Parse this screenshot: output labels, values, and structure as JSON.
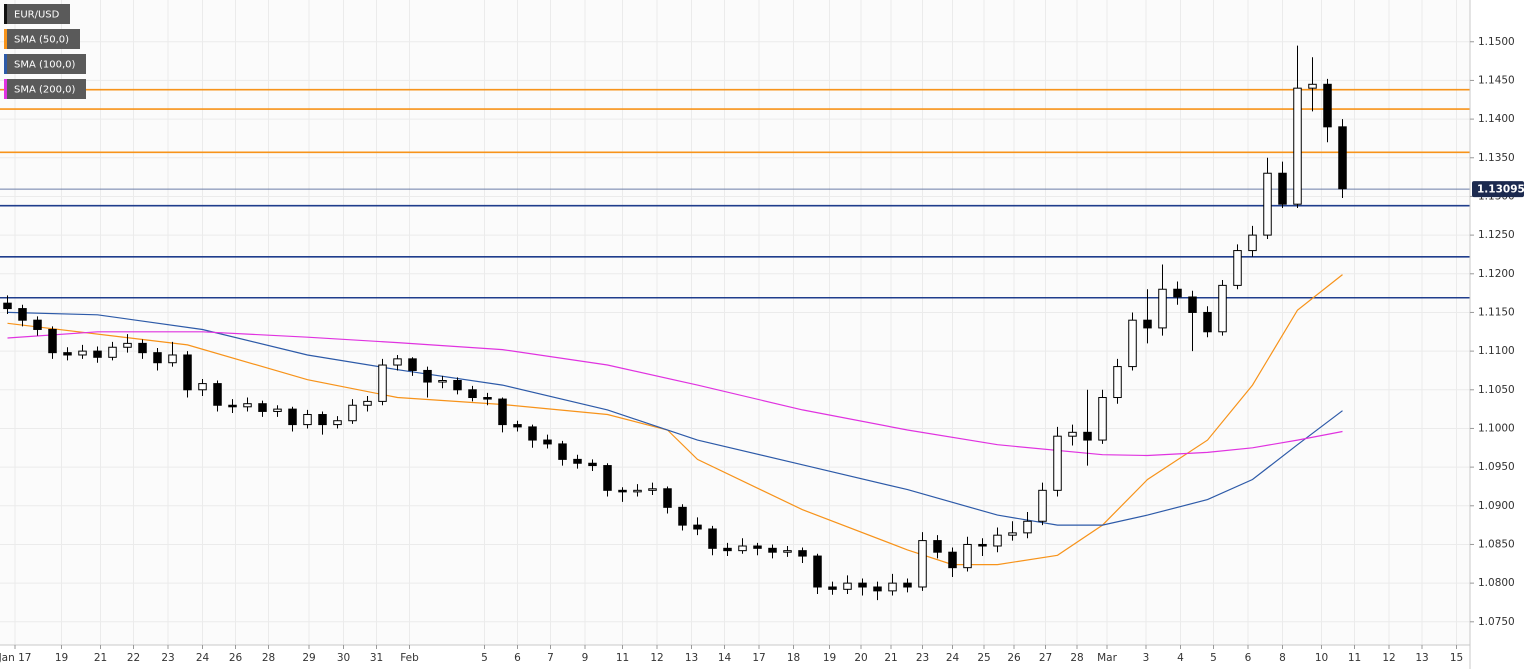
{
  "chart_data": {
    "type": "candlestick",
    "symbol": "EUR/USD",
    "symbol_color": "#111111",
    "up_color": "#ffffff",
    "down_color": "#000000",
    "ohlc": [
      [
        1.1162,
        1.1172,
        1.1148,
        1.1155
      ],
      [
        1.1155,
        1.116,
        1.1132,
        1.114
      ],
      [
        1.114,
        1.1145,
        1.112,
        1.1128
      ],
      [
        1.1128,
        1.1132,
        1.109,
        1.1098
      ],
      [
        1.1098,
        1.1105,
        1.1088,
        1.1095
      ],
      [
        1.1095,
        1.1108,
        1.109,
        1.11
      ],
      [
        1.11,
        1.1106,
        1.1085,
        1.1092
      ],
      [
        1.1092,
        1.1112,
        1.1088,
        1.1105
      ],
      [
        1.1105,
        1.1122,
        1.1098,
        1.111
      ],
      [
        1.111,
        1.1115,
        1.109,
        1.1098
      ],
      [
        1.1098,
        1.1104,
        1.1075,
        1.1085
      ],
      [
        1.1085,
        1.1112,
        1.108,
        1.1095
      ],
      [
        1.1095,
        1.11,
        1.104,
        1.105
      ],
      [
        1.105,
        1.1064,
        1.1042,
        1.1058
      ],
      [
        1.1058,
        1.1062,
        1.1022,
        1.103
      ],
      [
        1.103,
        1.1038,
        1.102,
        1.1028
      ],
      [
        1.1028,
        1.104,
        1.1022,
        1.1032
      ],
      [
        1.1032,
        1.1036,
        1.1015,
        1.1022
      ],
      [
        1.1022,
        1.103,
        1.1015,
        1.1025
      ],
      [
        1.1025,
        1.1028,
        1.0996,
        1.1005
      ],
      [
        1.1005,
        1.1024,
        1.1,
        1.1018
      ],
      [
        1.1018,
        1.1022,
        1.0992,
        1.1005
      ],
      [
        1.1005,
        1.1016,
        1.1,
        1.101
      ],
      [
        1.101,
        1.1038,
        1.1006,
        1.103
      ],
      [
        1.103,
        1.1042,
        1.1022,
        1.1035
      ],
      [
        1.1035,
        1.109,
        1.103,
        1.1082
      ],
      [
        1.1082,
        1.1095,
        1.1075,
        1.109
      ],
      [
        1.109,
        1.1092,
        1.1068,
        1.1075
      ],
      [
        1.1075,
        1.108,
        1.104,
        1.106
      ],
      [
        1.106,
        1.1068,
        1.1052,
        1.1062
      ],
      [
        1.1062,
        1.1066,
        1.1044,
        1.105
      ],
      [
        1.105,
        1.1055,
        1.1035,
        1.104
      ],
      [
        1.104,
        1.1046,
        1.103,
        1.1038
      ],
      [
        1.1038,
        1.104,
        1.0995,
        1.1005
      ],
      [
        1.1005,
        1.101,
        1.0996,
        1.1002
      ],
      [
        1.1002,
        1.1005,
        1.0975,
        1.0985
      ],
      [
        1.0985,
        1.0992,
        1.0974,
        1.098
      ],
      [
        1.098,
        1.0984,
        1.0952,
        1.096
      ],
      [
        1.096,
        1.0966,
        1.0948,
        1.0955
      ],
      [
        1.0955,
        1.096,
        1.0945,
        1.0952
      ],
      [
        1.0952,
        1.0955,
        1.0912,
        1.092
      ],
      [
        1.092,
        1.0924,
        1.0905,
        1.0918
      ],
      [
        1.0918,
        1.0928,
        1.0912,
        1.092
      ],
      [
        1.092,
        1.093,
        1.0914,
        1.0922
      ],
      [
        1.0922,
        1.0925,
        1.089,
        1.0898
      ],
      [
        1.0898,
        1.0902,
        1.0868,
        1.0875
      ],
      [
        1.0875,
        1.0885,
        1.0862,
        1.087
      ],
      [
        1.087,
        1.0874,
        1.0836,
        1.0845
      ],
      [
        1.0845,
        1.0852,
        1.0835,
        1.0842
      ],
      [
        1.0842,
        1.0858,
        1.0838,
        1.0848
      ],
      [
        1.0848,
        1.0852,
        1.0836,
        1.0845
      ],
      [
        1.0845,
        1.085,
        1.0832,
        1.084
      ],
      [
        1.084,
        1.0848,
        1.0834,
        1.0842
      ],
      [
        1.0842,
        1.0846,
        1.0826,
        1.0835
      ],
      [
        1.0835,
        1.0838,
        1.0786,
        1.0795
      ],
      [
        1.0795,
        1.0802,
        1.0785,
        1.0792
      ],
      [
        1.0792,
        1.081,
        1.0786,
        1.08
      ],
      [
        1.08,
        1.0806,
        1.0784,
        1.0795
      ],
      [
        1.0795,
        1.0802,
        1.0778,
        1.079
      ],
      [
        1.079,
        1.0812,
        1.0784,
        1.08
      ],
      [
        1.08,
        1.0806,
        1.0788,
        1.0795
      ],
      [
        1.0795,
        1.0866,
        1.079,
        1.0855
      ],
      [
        1.0855,
        1.0862,
        1.0832,
        1.084
      ],
      [
        1.084,
        1.0846,
        1.0808,
        1.082
      ],
      [
        1.082,
        1.086,
        1.0815,
        1.085
      ],
      [
        1.085,
        1.0858,
        1.0835,
        1.0848
      ],
      [
        1.0848,
        1.0872,
        1.084,
        1.0862
      ],
      [
        1.0862,
        1.088,
        1.0855,
        1.0865
      ],
      [
        1.0865,
        1.0892,
        1.0858,
        1.088
      ],
      [
        1.088,
        1.093,
        1.0875,
        1.092
      ],
      [
        1.092,
        1.1002,
        1.0912,
        1.099
      ],
      [
        1.099,
        1.1005,
        1.0978,
        1.0995
      ],
      [
        1.0995,
        1.105,
        1.0952,
        1.0985
      ],
      [
        1.0985,
        1.105,
        1.098,
        1.104
      ],
      [
        1.104,
        1.109,
        1.1032,
        1.108
      ],
      [
        1.108,
        1.115,
        1.1075,
        1.114
      ],
      [
        1.114,
        1.118,
        1.111,
        1.113
      ],
      [
        1.113,
        1.1212,
        1.112,
        1.118
      ],
      [
        1.118,
        1.119,
        1.116,
        1.117
      ],
      [
        1.117,
        1.1178,
        1.11,
        1.115
      ],
      [
        1.115,
        1.1158,
        1.1118,
        1.1125
      ],
      [
        1.1125,
        1.1192,
        1.112,
        1.1185
      ],
      [
        1.1185,
        1.1238,
        1.118,
        1.123
      ],
      [
        1.123,
        1.1262,
        1.1222,
        1.125
      ],
      [
        1.125,
        1.135,
        1.1245,
        1.133
      ],
      [
        1.133,
        1.1345,
        1.1285,
        1.129
      ],
      [
        1.129,
        1.1495,
        1.1285,
        1.144
      ],
      [
        1.144,
        1.148,
        1.141,
        1.1445
      ],
      [
        1.1445,
        1.1452,
        1.137,
        1.139
      ],
      [
        1.139,
        1.14,
        1.1298,
        1.131
      ]
    ],
    "series": [
      {
        "name": "SMA (50,0)",
        "color": "#f7931a",
        "x": [
          0,
          12,
          20,
          26,
          33,
          40,
          44,
          46,
          53,
          60,
          63,
          66,
          70,
          73,
          76,
          80,
          83,
          86,
          89
        ],
        "values": [
          1.1136,
          1.1108,
          1.1063,
          1.104,
          1.1031,
          1.1018,
          1.0998,
          1.096,
          1.0895,
          1.0843,
          1.0824,
          1.0824,
          1.0836,
          1.0875,
          1.0934,
          1.0985,
          1.1056,
          1.1153,
          1.1199
        ]
      },
      {
        "name": "SMA (100,0)",
        "color": "#2d5aa8",
        "x": [
          0,
          6,
          13,
          20,
          26,
          33,
          40,
          46,
          53,
          60,
          66,
          70,
          73,
          76,
          80,
          83,
          86,
          89
        ],
        "values": [
          1.115,
          1.1147,
          1.1128,
          1.1095,
          1.1076,
          1.1056,
          1.1024,
          1.0985,
          1.0953,
          1.0921,
          1.0888,
          1.0875,
          1.0875,
          1.0888,
          1.0908,
          1.0934,
          1.0979,
          1.1023
        ]
      },
      {
        "name": "SMA (200,0)",
        "color": "#e033e0",
        "x": [
          0,
          6,
          13,
          20,
          26,
          33,
          40,
          46,
          53,
          60,
          66,
          73,
          76,
          80,
          83,
          86,
          89
        ],
        "values": [
          1.1117,
          1.1125,
          1.1125,
          1.1118,
          1.1111,
          1.1102,
          1.1082,
          1.1056,
          1.1024,
          1.0998,
          1.0979,
          1.0966,
          1.0965,
          1.0969,
          1.0975,
          1.0985,
          1.0996
        ]
      }
    ],
    "levels": [
      {
        "value": 1.1438,
        "color": "#f7931a"
      },
      {
        "value": 1.1413,
        "color": "#f7931a"
      },
      {
        "value": 1.1357,
        "color": "#f7931a"
      },
      {
        "value": 1.1288,
        "color": "#1f3d8c"
      },
      {
        "value": 1.1222,
        "color": "#1f3d8c"
      },
      {
        "value": 1.1169,
        "color": "#1f3d8c"
      }
    ],
    "current_price": 1.13095,
    "current_price_color": "#1c2a4f",
    "xlim": [
      -0.5,
      97.5
    ],
    "xticks": [
      {
        "value": 0.5,
        "label": "Jan 17"
      },
      {
        "value": 3.6,
        "label": "19"
      },
      {
        "value": 6.2,
        "label": "21"
      },
      {
        "value": 8.4,
        "label": "22"
      },
      {
        "value": 10.7,
        "label": "23"
      },
      {
        "value": 13,
        "label": "24"
      },
      {
        "value": 15.2,
        "label": "26"
      },
      {
        "value": 17.4,
        "label": "28"
      },
      {
        "value": 20.1,
        "label": "29"
      },
      {
        "value": 22.4,
        "label": "30"
      },
      {
        "value": 24.6,
        "label": "31"
      },
      {
        "value": 26.8,
        "label": "Feb"
      },
      {
        "value": 31.8,
        "label": "5"
      },
      {
        "value": 34,
        "label": "6"
      },
      {
        "value": 36.2,
        "label": "7"
      },
      {
        "value": 38.5,
        "label": "9"
      },
      {
        "value": 41,
        "label": "11"
      },
      {
        "value": 43.3,
        "label": "12"
      },
      {
        "value": 45.6,
        "label": "13"
      },
      {
        "value": 47.8,
        "label": "14"
      },
      {
        "value": 50.1,
        "label": "17"
      },
      {
        "value": 52.4,
        "label": "18"
      },
      {
        "value": 54.8,
        "label": "19"
      },
      {
        "value": 56.9,
        "label": "20"
      },
      {
        "value": 58.9,
        "label": "21"
      },
      {
        "value": 61,
        "label": "23"
      },
      {
        "value": 63,
        "label": "24"
      },
      {
        "value": 65.1,
        "label": "25"
      },
      {
        "value": 67.1,
        "label": "26"
      },
      {
        "value": 69.2,
        "label": "27"
      },
      {
        "value": 71.3,
        "label": "28"
      },
      {
        "value": 73.3,
        "label": "Mar"
      },
      {
        "value": 75.9,
        "label": "3"
      },
      {
        "value": 78.2,
        "label": "4"
      },
      {
        "value": 80.4,
        "label": "5"
      },
      {
        "value": 82.7,
        "label": "6"
      },
      {
        "value": 85,
        "label": "8"
      },
      {
        "value": 87.6,
        "label": "10"
      },
      {
        "value": 89.8,
        "label": "11"
      },
      {
        "value": 92.1,
        "label": "12"
      },
      {
        "value": 94.3,
        "label": "13"
      },
      {
        "value": 96.6,
        "label": "15"
      }
    ],
    "ylim": [
      1.072,
      1.1554
    ],
    "yticks": [
      {
        "value": 1.075,
        "label": "1.0750"
      },
      {
        "value": 1.08,
        "label": "1.0800"
      },
      {
        "value": 1.085,
        "label": "1.0850"
      },
      {
        "value": 1.09,
        "label": "1.0900"
      },
      {
        "value": 1.095,
        "label": "1.0950"
      },
      {
        "value": 1.1,
        "label": "1.1000"
      },
      {
        "value": 1.105,
        "label": "1.1050"
      },
      {
        "value": 1.11,
        "label": "1.1100"
      },
      {
        "value": 1.115,
        "label": "1.1150"
      },
      {
        "value": 1.12,
        "label": "1.1200"
      },
      {
        "value": 1.125,
        "label": "1.1250"
      },
      {
        "value": 1.13,
        "label": "1.1300"
      },
      {
        "value": 1.135,
        "label": "1.1350"
      },
      {
        "value": 1.14,
        "label": "1.1400"
      },
      {
        "value": 1.145,
        "label": "1.1450"
      },
      {
        "value": 1.15,
        "label": "1.1500"
      }
    ],
    "grid": true
  }
}
